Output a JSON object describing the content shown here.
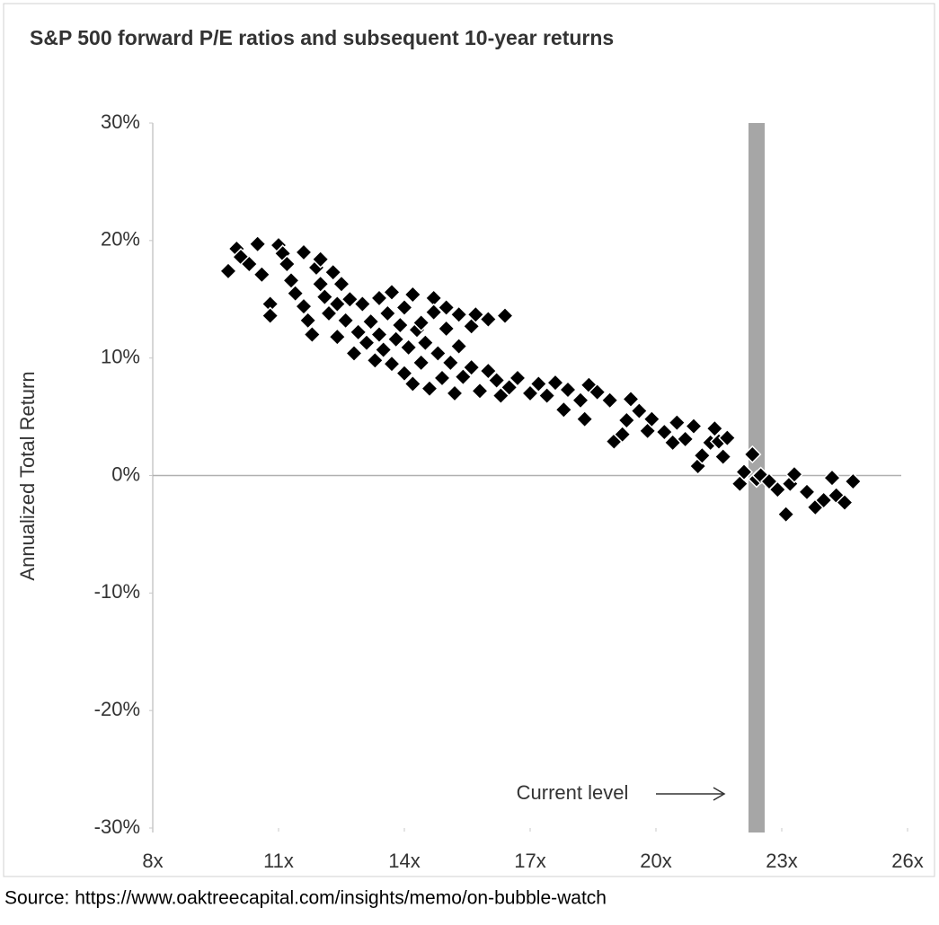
{
  "chart_data": {
    "type": "scatter",
    "title": "S&P 500 forward P/E ratios and subsequent 10-year returns",
    "y_label": "Annualized Total Return",
    "source": "Source: https://www.oaktreecapital.com/insights/memo/on-bubble-watch",
    "annotation": "Current level",
    "current_level": {
      "x": 22.4,
      "color": "#a6a6a6"
    },
    "color": "#000000",
    "xlim": [
      8,
      26
    ],
    "xticks": [
      {
        "value": 8,
        "label": "8x"
      },
      {
        "value": 11,
        "label": "11x"
      },
      {
        "value": 14,
        "label": "14x"
      },
      {
        "value": 17,
        "label": "17x"
      },
      {
        "value": 20,
        "label": "20x"
      },
      {
        "value": 23,
        "label": "23x"
      },
      {
        "value": 26,
        "label": "26x"
      }
    ],
    "ylim": [
      -30,
      30
    ],
    "yticks": [
      {
        "value": 30,
        "label": "30%"
      },
      {
        "value": 20,
        "label": "20%"
      },
      {
        "value": 10,
        "label": "10%"
      },
      {
        "value": 0,
        "label": "0%"
      },
      {
        "value": -10,
        "label": "-10%"
      },
      {
        "value": -20,
        "label": "-20%"
      },
      {
        "value": -30,
        "label": "-30%"
      }
    ],
    "x": [
      9.8,
      10.0,
      10.1,
      10.3,
      10.5,
      10.6,
      10.8,
      10.8,
      11.0,
      11.1,
      11.2,
      11.3,
      11.4,
      11.6,
      11.6,
      11.7,
      11.8,
      11.9,
      12.0,
      12.0,
      12.1,
      12.2,
      12.3,
      12.4,
      12.4,
      12.5,
      12.6,
      12.7,
      12.8,
      12.9,
      13.0,
      13.1,
      13.2,
      13.3,
      13.4,
      13.4,
      13.5,
      13.6,
      13.7,
      13.7,
      13.8,
      13.9,
      14.0,
      14.0,
      14.1,
      14.2,
      14.2,
      14.3,
      14.4,
      14.4,
      14.5,
      14.6,
      14.7,
      14.7,
      14.8,
      14.9,
      15.0,
      15.0,
      15.1,
      15.2,
      15.3,
      15.3,
      15.4,
      15.6,
      15.6,
      15.7,
      15.8,
      16.0,
      16.0,
      16.2,
      16.3,
      16.4,
      16.5,
      16.7,
      17.0,
      17.2,
      17.4,
      17.6,
      17.8,
      17.9,
      18.2,
      18.3,
      18.4,
      18.6,
      18.9,
      19.0,
      19.2,
      19.3,
      19.4,
      19.6,
      19.8,
      19.9,
      20.2,
      20.4,
      20.5,
      20.7,
      20.9,
      21.0,
      21.1,
      21.3,
      21.4,
      21.5,
      21.6,
      21.7,
      22.0,
      22.1,
      22.3,
      22.4,
      22.5,
      22.7,
      22.9,
      23.1,
      23.2,
      23.3,
      23.6,
      23.8,
      24.0,
      24.2,
      24.3,
      24.5,
      24.7
    ],
    "values": [
      17.4,
      19.3,
      18.6,
      18.0,
      19.7,
      17.1,
      14.6,
      13.6,
      19.6,
      18.9,
      18.0,
      16.6,
      15.5,
      19.0,
      14.4,
      13.2,
      12.0,
      17.7,
      16.3,
      18.4,
      15.2,
      13.8,
      17.3,
      11.8,
      14.6,
      16.3,
      13.2,
      15.0,
      10.4,
      12.2,
      14.6,
      11.3,
      13.1,
      9.8,
      15.1,
      12.0,
      10.7,
      13.8,
      15.6,
      9.5,
      11.6,
      12.8,
      14.3,
      8.7,
      10.9,
      15.4,
      7.8,
      12.4,
      13.0,
      9.6,
      11.3,
      7.4,
      15.1,
      13.9,
      10.4,
      8.3,
      12.5,
      14.3,
      9.6,
      7.0,
      13.7,
      11.0,
      8.4,
      12.7,
      9.2,
      13.7,
      7.2,
      13.3,
      8.9,
      8.1,
      6.8,
      13.6,
      7.5,
      8.3,
      7.0,
      7.8,
      6.8,
      7.9,
      5.6,
      7.3,
      6.4,
      4.8,
      7.7,
      7.1,
      6.4,
      2.9,
      3.5,
      4.7,
      6.5,
      5.5,
      3.8,
      4.8,
      3.7,
      2.8,
      4.5,
      3.1,
      4.2,
      0.8,
      1.7,
      2.8,
      4.0,
      2.9,
      1.6,
      3.2,
      -0.7,
      0.3,
      1.8,
      -0.3,
      0.0,
      -0.5,
      -1.2,
      -3.3,
      -0.7,
      0.1,
      -1.4,
      -2.7,
      -2.1,
      -0.2,
      -1.7,
      -2.3,
      -0.5
    ]
  }
}
